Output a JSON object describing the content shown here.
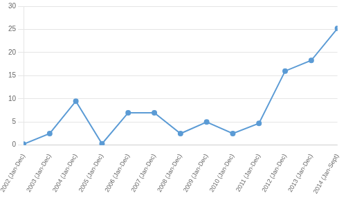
{
  "chart_data": {
    "type": "line",
    "categories": [
      "2002 (Jan-Dec)",
      "2003 (Jan-Dec)",
      "2004 (Jan-Dec)",
      "2005 (Jan-Dec)",
      "2006 (Jan-Dec)",
      "2007 (Jan-Dec)",
      "2008 (Jan-Dec)",
      "2009 (Jan-Dec)",
      "2010 (Jan-Dec)",
      "2011 (Jan-Dec)",
      "2012 (Jan-Dec)",
      "2013 (Jan-Dec)",
      "2014 (Jan-Sept)"
    ],
    "values": [
      0.2,
      2.5,
      9.5,
      0.3,
      7.0,
      7.0,
      2.5,
      5.0,
      2.5,
      4.7,
      16.0,
      18.3,
      25.2
    ],
    "color": "#5b9bd5",
    "marker": "circle",
    "ylim": [
      0,
      30
    ],
    "yticks": [
      0,
      5,
      10,
      15,
      20,
      25,
      30
    ],
    "grid": true
  }
}
